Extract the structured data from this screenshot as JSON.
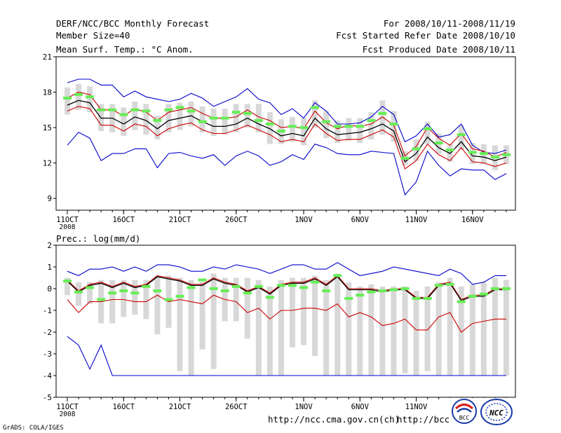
{
  "header": {
    "title": "DERF/NCC/BCC Monthly Forecast",
    "member_size": "Member Size=40",
    "variable": "Mean Surf. Temp.: °C Anom.",
    "period": "For 2008/10/11-2008/11/19",
    "started": "Fcst Started Refer Date 2008/10/10",
    "produced": "Fcst Produced Date 2008/10/11"
  },
  "footer": {
    "grads": "GrADS: COLA/IGES",
    "url1": "http://ncc.cma.gov.cn(ch)",
    "url2": "http://bcc.cma.gov.cn",
    "logo1_text": "BCC",
    "logo2_text": "NCC"
  },
  "colors": {
    "envelope": "#0000cc",
    "spread": "#cc0000",
    "mean": "#000000",
    "box": "#d8d8d8",
    "median": "#66ee55"
  },
  "chart_data": [
    {
      "type": "line",
      "title": "Mean Surf. Temp.: °C Anom.",
      "days": 40,
      "xticks": [
        {
          "day": 1,
          "label": "11OCT",
          "sub": "2008"
        },
        {
          "day": 6,
          "label": "16OCT"
        },
        {
          "day": 11,
          "label": "21OCT"
        },
        {
          "day": 16,
          "label": "26OCT"
        },
        {
          "day": 22,
          "label": "1NOV"
        },
        {
          "day": 27,
          "label": "6NOV"
        },
        {
          "day": 32,
          "label": "11NOV"
        },
        {
          "day": 37,
          "label": "16NOV"
        }
      ],
      "ylim": [
        8,
        21
      ],
      "yticks": [
        9,
        12,
        15,
        18,
        21
      ],
      "series": [
        {
          "name": "max",
          "color": "#0000cc",
          "values": [
            18.8,
            19.1,
            19.1,
            18.6,
            18.6,
            17.6,
            18.1,
            17.6,
            17.4,
            17.2,
            17.4,
            17.9,
            17.5,
            16.8,
            17.2,
            17.6,
            18.3,
            17.4,
            17.1,
            16.1,
            16.6,
            15.8,
            17.1,
            16.4,
            15.3,
            15.3,
            15.4,
            15.9,
            16.8,
            16.1,
            13.8,
            14.3,
            15.3,
            14.2,
            14.4,
            15.3,
            13.5,
            12.9,
            12.8,
            13.1
          ]
        },
        {
          "name": "upper",
          "color": "#cc0000",
          "values": [
            17.5,
            18.0,
            17.8,
            16.5,
            16.5,
            16.0,
            16.6,
            16.3,
            15.6,
            16.3,
            16.5,
            16.7,
            16.2,
            15.8,
            15.8,
            15.9,
            16.5,
            15.9,
            15.6,
            15.0,
            15.1,
            14.9,
            16.4,
            15.4,
            14.9,
            15.2,
            15.1,
            15.3,
            15.9,
            15.2,
            12.6,
            13.4,
            15.0,
            14.1,
            13.5,
            14.5,
            13.2,
            13.0,
            12.5,
            12.9
          ]
        },
        {
          "name": "mean",
          "color": "#000000",
          "values": [
            16.9,
            17.3,
            17.1,
            15.8,
            15.8,
            15.3,
            15.9,
            15.6,
            14.9,
            15.6,
            15.8,
            16.0,
            15.5,
            15.1,
            15.1,
            15.3,
            15.8,
            15.3,
            14.9,
            14.3,
            14.5,
            14.3,
            15.8,
            14.9,
            14.4,
            14.5,
            14.6,
            14.9,
            15.3,
            14.7,
            12.1,
            12.8,
            14.2,
            13.3,
            12.8,
            13.8,
            12.6,
            12.5,
            12.2,
            12.5
          ]
        },
        {
          "name": "lower",
          "color": "#cc0000",
          "values": [
            16.4,
            16.8,
            16.6,
            15.2,
            15.2,
            14.7,
            15.3,
            15.1,
            14.3,
            14.9,
            15.2,
            15.4,
            14.8,
            14.5,
            14.5,
            14.8,
            15.2,
            14.8,
            14.4,
            13.8,
            14.0,
            13.8,
            15.3,
            14.5,
            13.9,
            14.0,
            14.0,
            14.4,
            14.8,
            14.2,
            11.5,
            12.2,
            13.6,
            12.7,
            12.2,
            13.3,
            12.1,
            12.0,
            11.7,
            12.0
          ]
        },
        {
          "name": "min",
          "color": "#0000cc",
          "values": [
            13.5,
            14.6,
            14.1,
            12.2,
            12.8,
            12.8,
            13.2,
            13.2,
            11.6,
            12.8,
            12.9,
            12.6,
            12.4,
            12.7,
            11.8,
            12.6,
            13.0,
            12.6,
            11.8,
            12.1,
            12.7,
            12.3,
            13.6,
            13.3,
            12.8,
            12.7,
            12.7,
            13.0,
            12.9,
            12.8,
            9.3,
            10.4,
            13.0,
            11.8,
            10.9,
            11.5,
            11.4,
            11.4,
            10.6,
            11.1
          ]
        }
      ],
      "boxes": {
        "low": [
          16.1,
          16.5,
          16.3,
          14.7,
          14.6,
          14.3,
          14.8,
          14.4,
          14.0,
          14.6,
          14.8,
          15.1,
          14.6,
          14.3,
          14.4,
          14.6,
          15.0,
          14.6,
          13.6,
          13.6,
          13.8,
          13.5,
          15.0,
          14.1,
          13.7,
          13.9,
          13.7,
          14.0,
          14.4,
          13.8,
          11.8,
          12.2,
          13.6,
          12.8,
          12.1,
          13.1,
          11.9,
          11.9,
          11.4,
          11.9
        ],
        "high": [
          18.4,
          18.7,
          18.5,
          17.0,
          17.0,
          16.7,
          17.2,
          17.0,
          16.0,
          17.0,
          17.1,
          17.2,
          16.8,
          16.6,
          16.6,
          17.0,
          17.0,
          17.0,
          16.3,
          15.7,
          15.9,
          15.8,
          17.3,
          16.4,
          15.6,
          15.8,
          15.8,
          16.3,
          17.3,
          16.4,
          13.0,
          14.0,
          15.5,
          14.5,
          13.6,
          15.2,
          13.7,
          13.6,
          13.5,
          13.5
        ],
        "median": [
          17.5,
          17.8,
          17.6,
          16.5,
          16.5,
          16.1,
          16.5,
          16.4,
          15.6,
          16.5,
          16.7,
          16.4,
          15.5,
          15.8,
          15.8,
          16.3,
          16.2,
          15.6,
          15.3,
          14.7,
          15.1,
          15.0,
          16.7,
          15.5,
          15.1,
          15.1,
          15.1,
          15.6,
          16.2,
          15.3,
          12.4,
          13.2,
          14.9,
          13.7,
          13.1,
          14.4,
          12.9,
          12.8,
          12.5,
          12.7
        ]
      }
    },
    {
      "type": "line",
      "title": "Prec.: log(mm/d)",
      "days": 40,
      "xticks": [
        {
          "day": 1,
          "label": "11OCT",
          "sub": "2008"
        },
        {
          "day": 6,
          "label": "16OCT"
        },
        {
          "day": 11,
          "label": "21OCT"
        },
        {
          "day": 16,
          "label": "26OCT"
        },
        {
          "day": 22,
          "label": "1NOV"
        },
        {
          "day": 27,
          "label": "6NOV"
        },
        {
          "day": 32,
          "label": "11NOV"
        },
        {
          "day": 37,
          "label": "16NOV"
        }
      ],
      "ylim": [
        -5,
        2
      ],
      "yticks": [
        -5,
        -4,
        -3,
        -2,
        -1,
        0,
        1,
        2
      ],
      "series": [
        {
          "name": "max",
          "color": "#0000cc",
          "values": [
            0.8,
            0.6,
            0.9,
            0.9,
            1.0,
            0.8,
            1.0,
            0.8,
            1.1,
            1.1,
            1.0,
            0.8,
            0.8,
            1.0,
            0.9,
            1.1,
            1.0,
            0.9,
            0.7,
            0.9,
            1.1,
            1.1,
            0.9,
            0.9,
            1.2,
            0.9,
            0.6,
            0.7,
            0.8,
            1.0,
            0.9,
            0.8,
            0.7,
            0.6,
            0.9,
            0.7,
            0.2,
            0.3,
            0.6,
            0.6
          ]
        },
        {
          "name": "upper",
          "color": "#cc0000",
          "values": [
            0.4,
            -0.1,
            0.2,
            0.3,
            0.1,
            0.3,
            0.1,
            0.2,
            0.6,
            0.5,
            0.4,
            0.2,
            0.2,
            0.5,
            0.3,
            0.2,
            -0.1,
            0.1,
            -0.2,
            0.2,
            0.3,
            0.3,
            0.5,
            0.2,
            0.6,
            0.0,
            0.0,
            0.0,
            -0.1,
            0.0,
            0.0,
            -0.4,
            -0.4,
            0.2,
            0.3,
            -0.5,
            -0.3,
            -0.3,
            0.0,
            0.0
          ]
        },
        {
          "name": "mean",
          "color": "#000000",
          "values": [
            0.35,
            -0.15,
            0.15,
            0.25,
            0.05,
            0.25,
            0.05,
            0.15,
            0.55,
            0.45,
            0.35,
            0.15,
            0.15,
            0.45,
            0.25,
            0.15,
            -0.15,
            0.05,
            -0.25,
            0.15,
            0.25,
            0.25,
            0.45,
            0.15,
            0.55,
            -0.05,
            -0.05,
            -0.05,
            -0.15,
            -0.05,
            -0.05,
            -0.45,
            -0.45,
            0.15,
            0.25,
            -0.55,
            -0.35,
            -0.35,
            -0.05,
            -0.05
          ]
        },
        {
          "name": "lower",
          "color": "#cc0000",
          "values": [
            -0.5,
            -1.1,
            -0.6,
            -0.6,
            -0.5,
            -0.5,
            -0.6,
            -0.6,
            -0.3,
            -0.6,
            -0.5,
            -0.6,
            -0.7,
            -0.3,
            -0.5,
            -0.6,
            -1.1,
            -0.9,
            -1.4,
            -1.0,
            -1.0,
            -0.9,
            -0.9,
            -1.0,
            -0.7,
            -1.3,
            -1.1,
            -1.3,
            -1.7,
            -1.6,
            -1.4,
            -1.9,
            -1.9,
            -1.3,
            -1.1,
            -2.0,
            -1.6,
            -1.5,
            -1.4,
            -1.4
          ]
        },
        {
          "name": "min",
          "color": "#0000cc",
          "values": [
            -2.2,
            -2.6,
            -3.7,
            -2.6,
            -4.0,
            -4.0,
            -4.0,
            -4.0,
            -4.0,
            -4.0,
            -4.0,
            -4.0,
            -4.0,
            -4.0,
            -4.0,
            -4.0,
            -4.0,
            -4.0,
            -4.0,
            -4.0,
            -4.0,
            -4.0,
            -4.0,
            -4.0,
            -4.0,
            -4.0,
            -4.0,
            -4.0,
            -4.0,
            -4.0,
            -4.0,
            -4.0,
            -4.0,
            -4.0,
            -4.0,
            -4.0,
            -4.0,
            -4.0,
            -4.0,
            -4.0
          ]
        }
      ],
      "boxes": {
        "low": [
          -0.3,
          -0.8,
          -0.7,
          -1.6,
          -1.6,
          -1.3,
          -1.2,
          -1.4,
          -2.1,
          -1.8,
          -3.8,
          -4.0,
          -2.8,
          -3.7,
          -1.5,
          -1.5,
          -2.3,
          -4.0,
          -4.0,
          -4.0,
          -2.7,
          -2.6,
          -3.1,
          -4.0,
          -4.0,
          -4.0,
          -4.0,
          -4.0,
          -4.0,
          -4.0,
          -3.9,
          -4.0,
          -3.8,
          -4.0,
          -4.0,
          -4.0,
          -4.0,
          -4.0,
          -4.0,
          -4.0
        ],
        "high": [
          0.5,
          0.3,
          0.3,
          0.4,
          0.4,
          0.4,
          0.4,
          0.4,
          0.6,
          0.6,
          0.5,
          0.4,
          0.3,
          0.7,
          0.5,
          0.5,
          0.5,
          0.4,
          0.1,
          0.4,
          0.5,
          0.5,
          0.6,
          0.4,
          0.7,
          0.3,
          0.1,
          0.2,
          0.1,
          0.1,
          0.1,
          -0.1,
          0.1,
          0.3,
          0.5,
          0.1,
          0.2,
          0.3,
          0.5,
          0.4
        ],
        "median": [
          0.35,
          -0.15,
          0.05,
          -0.5,
          -0.2,
          -0.1,
          -0.2,
          0.1,
          -0.1,
          -0.5,
          -0.35,
          0.05,
          0.4,
          0.0,
          -0.1,
          0.1,
          -0.2,
          0.1,
          -0.4,
          0.15,
          0.15,
          0.05,
          0.3,
          -0.1,
          0.6,
          -0.45,
          -0.3,
          -0.15,
          -0.1,
          -0.05,
          0.0,
          -0.45,
          -0.45,
          0.15,
          0.2,
          -0.6,
          -0.35,
          -0.25,
          0.0,
          0.0
        ]
      }
    }
  ]
}
